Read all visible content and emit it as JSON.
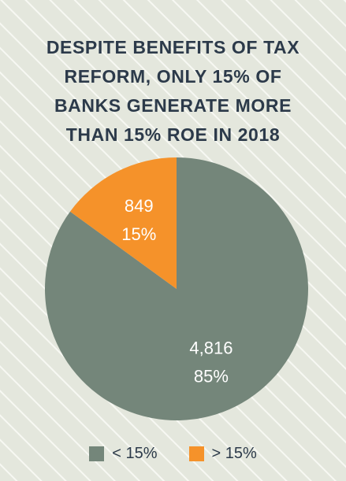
{
  "colors": {
    "background": "#e4e7dd",
    "stripe": "#f7f8f3",
    "title": "#2c3a4a",
    "slice_below": "#74867a",
    "slice_above": "#f5922a",
    "label": "#ffffff"
  },
  "chart_data": {
    "type": "pie",
    "title": "DESPITE BENEFITS OF TAX\nREFORM, ONLY 15% OF\nBANKS GENERATE MORE\nTHAN 15% ROE IN 2018",
    "slices": [
      {
        "name": "< 15%",
        "value": 4816,
        "value_label": "4,816",
        "percent_label": "85%",
        "color": "#74867a"
      },
      {
        "name": "> 15%",
        "value": 849,
        "value_label": "849",
        "percent_label": "15%",
        "color": "#f5922a"
      }
    ],
    "legend": {
      "position": "bottom",
      "items": [
        {
          "label": "< 15%",
          "color": "#74867a"
        },
        {
          "label": "> 15%",
          "color": "#f5922a"
        }
      ]
    }
  }
}
